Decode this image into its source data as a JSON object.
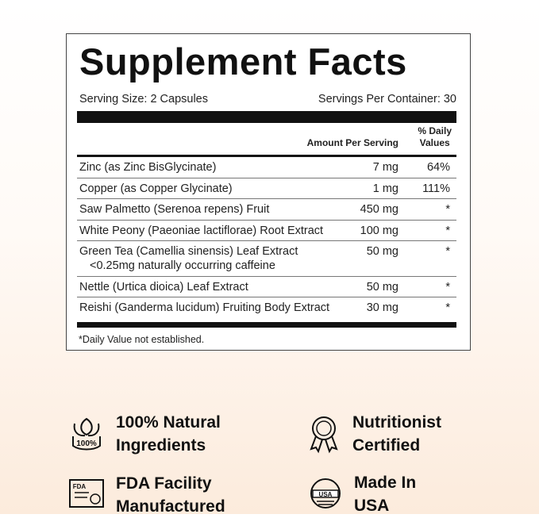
{
  "label": {
    "title": "Supplement Facts",
    "serving_size": "Serving Size: 2 Capsules",
    "servings_per_container": "Servings Per Container: 30",
    "header": {
      "amount": "Amount Per Serving",
      "dv": [
        "% Daily",
        "Values"
      ]
    },
    "rows": [
      {
        "name": [
          "Zinc (as Zinc BisGlycinate)"
        ],
        "amount": "7 mg",
        "dv": "64%"
      },
      {
        "name": [
          "Copper (as Copper Glycinate)"
        ],
        "amount": "1 mg",
        "dv": "111%"
      },
      {
        "name": [
          "Saw Palmetto (Serenoa repens) Fruit"
        ],
        "amount": "450 mg",
        "dv": "*"
      },
      {
        "name": [
          "White Peony (Paeoniae lactiflorae) Root Extract"
        ],
        "amount": "100 mg",
        "dv": "*"
      },
      {
        "name": [
          "Green Tea (Camellia sinensis) Leaf Extract",
          "<0.25mg naturally occurring caffeine"
        ],
        "amount": "50 mg",
        "dv": "*"
      },
      {
        "name": [
          "Nettle (Urtica dioica) Leaf Extract"
        ],
        "amount": "50 mg",
        "dv": "*"
      },
      {
        "name": [
          "Reishi (Ganderma lucidum) Fruiting Body Extract"
        ],
        "amount": "30 mg",
        "dv": "*"
      }
    ],
    "footnote": "*Daily Value not established."
  },
  "badges": [
    {
      "lines": [
        "100% Natural",
        "Ingredients"
      ],
      "icon_text": "100%"
    },
    {
      "lines": [
        "Nutritionist",
        "Certified"
      ]
    },
    {
      "lines": [
        "FDA Facility",
        "Manufactured"
      ],
      "icon_text": "FDA"
    },
    {
      "lines": [
        "Made In",
        "USA"
      ],
      "icon_text": "USA"
    }
  ]
}
